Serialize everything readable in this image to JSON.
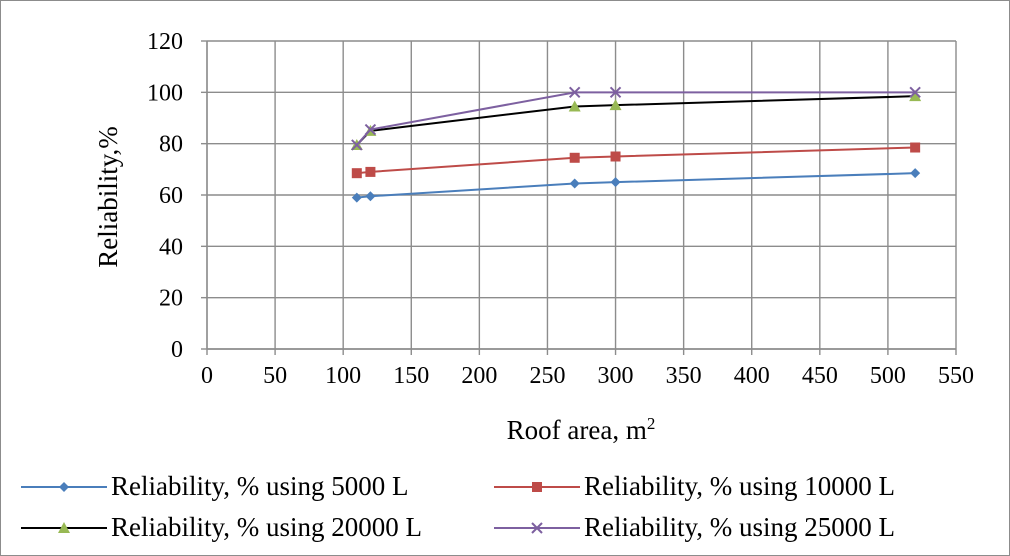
{
  "chart_data": {
    "type": "line",
    "title": "",
    "xlabel": "Roof area, m",
    "xlabel_superscript": "2",
    "ylabel": "Reliability,%",
    "xlim": [
      0,
      550
    ],
    "ylim": [
      0,
      120
    ],
    "x_ticks": [
      0,
      50,
      100,
      150,
      200,
      250,
      300,
      350,
      400,
      450,
      500,
      550
    ],
    "y_ticks": [
      0,
      20,
      40,
      60,
      80,
      100,
      120
    ],
    "grid": "both",
    "legend_position": "bottom",
    "series": [
      {
        "name": "Reliability, % using 5000 L",
        "color": "#4a7ebb",
        "marker": "diamond",
        "x": [
          110,
          120,
          270,
          300,
          520
        ],
        "values": [
          59,
          59.5,
          64.5,
          65,
          68.5
        ]
      },
      {
        "name": "Reliability, % using 10000 L",
        "color": "#be4b48",
        "marker": "square",
        "x": [
          110,
          120,
          270,
          300,
          520
        ],
        "values": [
          68.5,
          69,
          74.5,
          75,
          78.5
        ]
      },
      {
        "name": "Reliability, % using 20000 L",
        "color": "#000000",
        "marker_color": "#98b954",
        "marker": "triangle",
        "x": [
          110,
          120,
          270,
          300,
          520
        ],
        "values": [
          79.5,
          85,
          94.5,
          95,
          98.5
        ]
      },
      {
        "name": "Reliability, % using 25000 L",
        "color": "#7d60a0",
        "marker": "x",
        "x": [
          110,
          120,
          270,
          300,
          520
        ],
        "values": [
          79.5,
          85.5,
          100,
          100,
          100
        ]
      }
    ]
  }
}
